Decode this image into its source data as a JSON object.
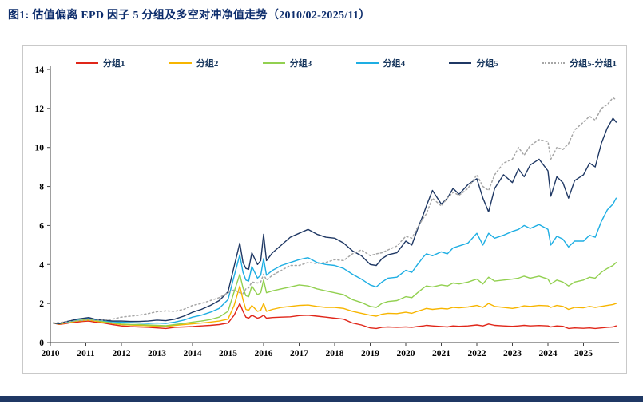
{
  "page": {
    "title": "图1:  估值偏离 EPD 因子 5 分组及多空对冲净值走势（2010/02-2025/11）",
    "accent_color": "#1f3864",
    "title_color": "#0d2d6c"
  },
  "chart_data": {
    "type": "line",
    "title": "估值偏离 EPD 因子 5 分组及多空对冲净值走势",
    "date_range": "2010/02-2025/11",
    "xlabel": "",
    "ylabel": "",
    "grid": false,
    "legend_position": "top",
    "xlim": [
      2010,
      2026
    ],
    "ylim": [
      0,
      14
    ],
    "y_ticks": [
      0,
      2,
      4,
      6,
      8,
      10,
      12,
      14
    ],
    "x_label_years": [
      2010,
      2011,
      2012,
      2013,
      2014,
      2015,
      2016,
      2017,
      2018,
      2019,
      2020,
      2021,
      2022,
      2023,
      2024,
      2025
    ],
    "x": [
      2010.08,
      2010.25,
      2010.42,
      2010.58,
      2010.75,
      2010.92,
      2011.08,
      2011.25,
      2011.5,
      2011.75,
      2012.0,
      2012.25,
      2012.5,
      2012.75,
      2013.0,
      2013.25,
      2013.5,
      2013.75,
      2014.0,
      2014.25,
      2014.5,
      2014.75,
      2015.0,
      2015.17,
      2015.33,
      2015.42,
      2015.5,
      2015.58,
      2015.67,
      2015.83,
      2015.92,
      2016.0,
      2016.08,
      2016.25,
      2016.5,
      2016.75,
      2017.0,
      2017.25,
      2017.5,
      2017.75,
      2018.0,
      2018.25,
      2018.5,
      2018.75,
      2019.0,
      2019.17,
      2019.33,
      2019.5,
      2019.75,
      2020.0,
      2020.17,
      2020.33,
      2020.5,
      2020.58,
      2020.75,
      2021.0,
      2021.17,
      2021.33,
      2021.5,
      2021.75,
      2022.0,
      2022.17,
      2022.33,
      2022.5,
      2022.75,
      2023.0,
      2023.17,
      2023.33,
      2023.5,
      2023.75,
      2024.0,
      2024.08,
      2024.25,
      2024.42,
      2024.58,
      2024.75,
      2025.0,
      2025.17,
      2025.33,
      2025.5,
      2025.67,
      2025.83,
      2025.92
    ],
    "series": [
      {
        "name": "分组1",
        "color": "#e02619",
        "style": "solid",
        "values": [
          1.0,
          0.93,
          0.97,
          1.02,
          1.05,
          1.08,
          1.1,
          1.05,
          1.0,
          0.92,
          0.85,
          0.82,
          0.8,
          0.78,
          0.75,
          0.72,
          0.78,
          0.8,
          0.82,
          0.85,
          0.88,
          0.92,
          1.0,
          1.4,
          2.0,
          1.6,
          1.3,
          1.25,
          1.4,
          1.25,
          1.3,
          1.4,
          1.25,
          1.28,
          1.3,
          1.32,
          1.38,
          1.4,
          1.35,
          1.3,
          1.25,
          1.2,
          1.0,
          0.9,
          0.75,
          0.72,
          0.78,
          0.8,
          0.78,
          0.8,
          0.78,
          0.82,
          0.85,
          0.88,
          0.85,
          0.82,
          0.8,
          0.85,
          0.83,
          0.85,
          0.9,
          0.85,
          0.95,
          0.88,
          0.85,
          0.83,
          0.85,
          0.88,
          0.85,
          0.87,
          0.85,
          0.8,
          0.85,
          0.83,
          0.72,
          0.75,
          0.73,
          0.75,
          0.72,
          0.75,
          0.78,
          0.8,
          0.85
        ]
      },
      {
        "name": "分组2",
        "color": "#f7b500",
        "style": "solid",
        "values": [
          1.0,
          0.95,
          1.0,
          1.05,
          1.1,
          1.12,
          1.15,
          1.1,
          1.05,
          0.98,
          0.92,
          0.9,
          0.88,
          0.86,
          0.84,
          0.82,
          0.88,
          0.92,
          0.96,
          1.0,
          1.05,
          1.1,
          1.2,
          1.9,
          2.9,
          2.2,
          1.7,
          1.65,
          1.9,
          1.6,
          1.65,
          2.0,
          1.6,
          1.7,
          1.8,
          1.85,
          1.9,
          1.92,
          1.85,
          1.8,
          1.8,
          1.75,
          1.6,
          1.5,
          1.4,
          1.35,
          1.45,
          1.5,
          1.48,
          1.55,
          1.5,
          1.6,
          1.7,
          1.75,
          1.7,
          1.75,
          1.72,
          1.8,
          1.78,
          1.82,
          1.9,
          1.8,
          2.0,
          1.85,
          1.8,
          1.75,
          1.8,
          1.88,
          1.85,
          1.9,
          1.88,
          1.8,
          1.9,
          1.85,
          1.7,
          1.8,
          1.78,
          1.85,
          1.8,
          1.85,
          1.9,
          1.95,
          2.0
        ]
      },
      {
        "name": "分组3",
        "color": "#92d050",
        "style": "solid",
        "values": [
          1.0,
          0.96,
          1.02,
          1.08,
          1.12,
          1.16,
          1.2,
          1.14,
          1.08,
          1.0,
          0.95,
          0.93,
          0.92,
          0.9,
          0.88,
          0.86,
          0.92,
          0.98,
          1.05,
          1.1,
          1.18,
          1.3,
          1.6,
          2.6,
          3.5,
          2.8,
          2.4,
          2.35,
          2.9,
          2.45,
          2.55,
          3.2,
          2.55,
          2.65,
          2.75,
          2.85,
          2.95,
          2.9,
          2.75,
          2.65,
          2.55,
          2.45,
          2.2,
          2.05,
          1.85,
          1.8,
          2.0,
          2.1,
          2.15,
          2.35,
          2.3,
          2.55,
          2.8,
          2.9,
          2.85,
          2.95,
          2.9,
          3.05,
          3.0,
          3.1,
          3.25,
          3.0,
          3.35,
          3.15,
          3.2,
          3.25,
          3.3,
          3.4,
          3.3,
          3.4,
          3.25,
          3.0,
          3.2,
          3.1,
          2.9,
          3.1,
          3.2,
          3.35,
          3.3,
          3.6,
          3.8,
          3.95,
          4.1
        ]
      },
      {
        "name": "分组4",
        "color": "#1eaee3",
        "style": "solid",
        "values": [
          1.0,
          0.97,
          1.05,
          1.1,
          1.18,
          1.22,
          1.25,
          1.18,
          1.12,
          1.06,
          1.05,
          1.02,
          1.0,
          0.98,
          1.0,
          0.98,
          1.05,
          1.15,
          1.3,
          1.4,
          1.55,
          1.75,
          2.2,
          3.4,
          4.5,
          3.6,
          3.2,
          3.15,
          3.9,
          3.3,
          3.45,
          4.3,
          3.45,
          3.7,
          3.95,
          4.1,
          4.25,
          4.35,
          4.1,
          4.0,
          3.95,
          3.8,
          3.5,
          3.25,
          2.95,
          2.85,
          3.1,
          3.3,
          3.35,
          3.7,
          3.6,
          4.0,
          4.4,
          4.55,
          4.45,
          4.65,
          4.55,
          4.85,
          4.95,
          5.1,
          5.6,
          5.0,
          5.6,
          5.35,
          5.5,
          5.7,
          5.8,
          6.0,
          5.85,
          6.05,
          5.8,
          5.0,
          5.45,
          5.3,
          4.9,
          5.2,
          5.2,
          5.5,
          5.4,
          6.2,
          6.8,
          7.1,
          7.4
        ]
      },
      {
        "name": "分组5",
        "color": "#1f3864",
        "style": "solid",
        "values": [
          1.0,
          0.97,
          1.06,
          1.12,
          1.2,
          1.24,
          1.28,
          1.2,
          1.15,
          1.1,
          1.1,
          1.08,
          1.08,
          1.1,
          1.15,
          1.12,
          1.2,
          1.35,
          1.55,
          1.7,
          1.9,
          2.15,
          2.6,
          3.9,
          5.1,
          4.1,
          3.8,
          3.75,
          4.6,
          4.0,
          4.2,
          5.55,
          4.2,
          4.6,
          5.0,
          5.4,
          5.6,
          5.8,
          5.55,
          5.4,
          5.35,
          5.1,
          4.7,
          4.45,
          4.0,
          3.95,
          4.3,
          4.5,
          4.6,
          5.2,
          5.0,
          5.8,
          6.6,
          7.0,
          7.8,
          7.1,
          7.4,
          7.9,
          7.6,
          8.1,
          8.4,
          7.4,
          6.7,
          7.9,
          8.6,
          8.2,
          8.9,
          8.5,
          9.1,
          9.4,
          8.8,
          7.5,
          8.5,
          8.2,
          7.4,
          8.3,
          8.6,
          9.2,
          9.0,
          10.2,
          11.0,
          11.5,
          11.3
        ]
      },
      {
        "name": "分组5-分组1",
        "color": "#a6a6a6",
        "style": "dashed",
        "values": [
          1.0,
          1.02,
          1.06,
          1.08,
          1.12,
          1.14,
          1.16,
          1.14,
          1.15,
          1.2,
          1.3,
          1.35,
          1.4,
          1.48,
          1.58,
          1.62,
          1.6,
          1.7,
          1.9,
          2.0,
          2.15,
          2.3,
          2.55,
          2.7,
          2.55,
          2.5,
          2.75,
          2.8,
          3.1,
          3.05,
          3.1,
          3.5,
          3.2,
          3.45,
          3.7,
          3.95,
          3.95,
          4.1,
          4.05,
          4.1,
          4.25,
          4.2,
          4.55,
          4.75,
          4.45,
          4.55,
          4.6,
          4.75,
          4.95,
          5.45,
          5.35,
          5.9,
          6.4,
          6.6,
          7.4,
          7.0,
          7.4,
          7.7,
          7.55,
          7.9,
          8.6,
          8.0,
          7.8,
          8.6,
          9.2,
          9.4,
          10.0,
          9.6,
          10.1,
          10.4,
          10.3,
          9.4,
          10.0,
          9.9,
          10.2,
          10.9,
          11.3,
          11.6,
          11.4,
          12.0,
          12.2,
          12.55,
          12.45
        ]
      }
    ]
  }
}
